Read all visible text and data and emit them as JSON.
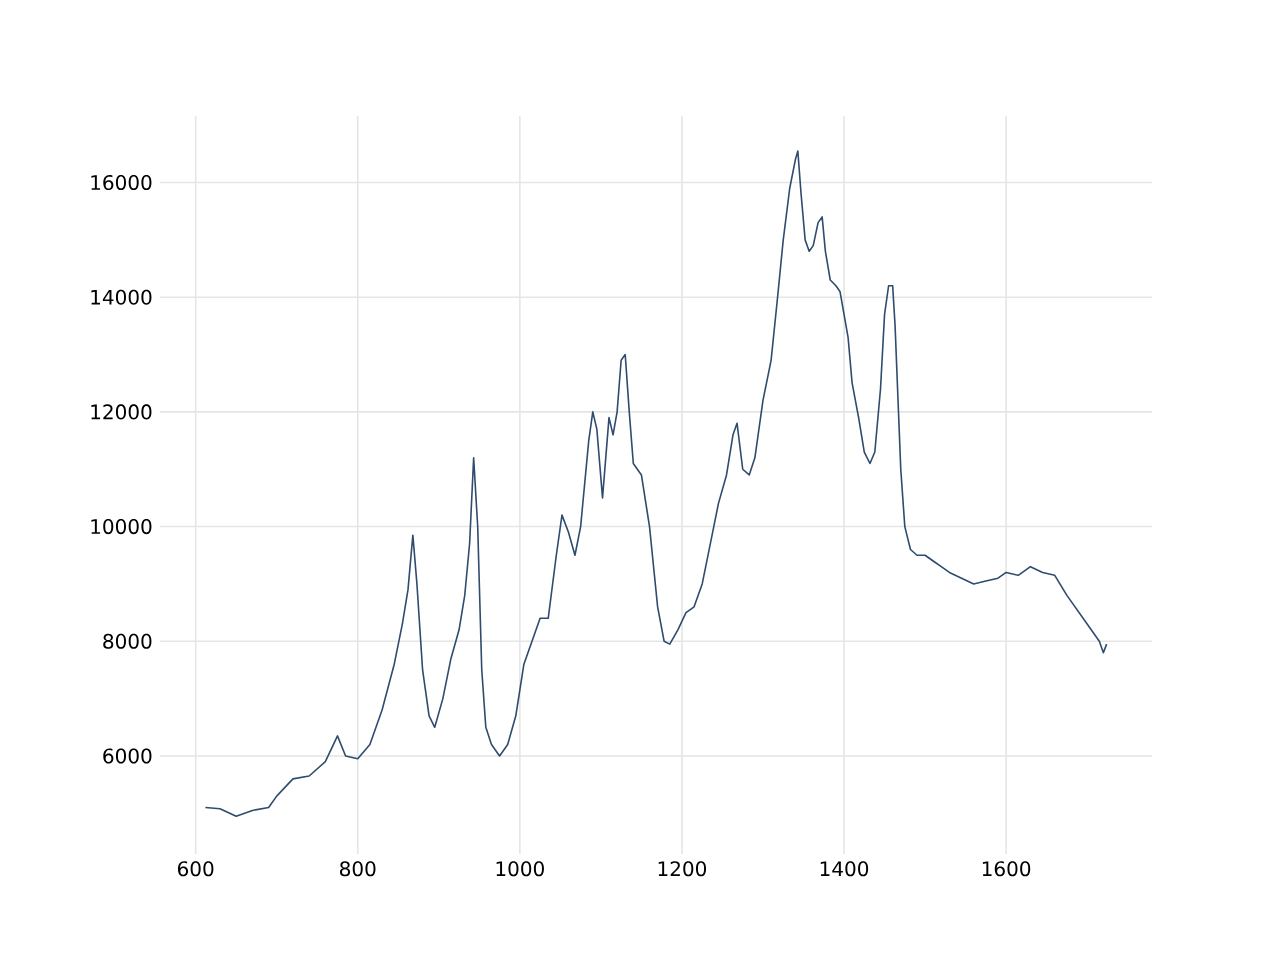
{
  "chart_data": {
    "type": "line",
    "color": "#2f4b6e",
    "grid": true,
    "xlim": [
      556,
      1780
    ],
    "ylim": [
      4290,
      17160
    ],
    "xticks": [
      600,
      800,
      1000,
      1200,
      1400,
      1600
    ],
    "yticks": [
      6000,
      8000,
      10000,
      12000,
      14000,
      16000
    ],
    "x": [
      612,
      630,
      650,
      670,
      690,
      700,
      720,
      740,
      760,
      775,
      785,
      800,
      815,
      830,
      845,
      855,
      862,
      868,
      873,
      880,
      888,
      895,
      905,
      915,
      925,
      932,
      938,
      943,
      948,
      953,
      958,
      965,
      975,
      985,
      995,
      1005,
      1015,
      1025,
      1035,
      1045,
      1052,
      1060,
      1068,
      1075,
      1085,
      1090,
      1095,
      1102,
      1110,
      1115,
      1120,
      1125,
      1130,
      1135,
      1140,
      1150,
      1160,
      1170,
      1178,
      1185,
      1195,
      1205,
      1215,
      1225,
      1235,
      1245,
      1255,
      1263,
      1268,
      1275,
      1283,
      1290,
      1300,
      1310,
      1318,
      1325,
      1333,
      1340,
      1343,
      1347,
      1352,
      1357,
      1362,
      1368,
      1373,
      1377,
      1383,
      1390,
      1395,
      1400,
      1405,
      1410,
      1418,
      1425,
      1432,
      1438,
      1445,
      1450,
      1455,
      1460,
      1463,
      1470,
      1475,
      1482,
      1490,
      1500,
      1510,
      1520,
      1530,
      1545,
      1560,
      1575,
      1590,
      1600,
      1615,
      1630,
      1645,
      1660,
      1675,
      1690,
      1705,
      1715,
      1720,
      1724
    ],
    "values": [
      5100,
      5080,
      4950,
      5050,
      5100,
      5300,
      5600,
      5650,
      5900,
      6350,
      6000,
      5950,
      6200,
      6800,
      7600,
      8300,
      8900,
      9850,
      9000,
      7500,
      6700,
      6500,
      7000,
      7700,
      8200,
      8800,
      9700,
      11200,
      10000,
      7500,
      6500,
      6200,
      6000,
      6200,
      6700,
      7600,
      8000,
      8400,
      8400,
      9500,
      10200,
      9900,
      9500,
      10000,
      11500,
      12000,
      11700,
      10500,
      11900,
      11600,
      12000,
      12900,
      13000,
      12000,
      11100,
      10900,
      10000,
      8600,
      8000,
      7950,
      8200,
      8500,
      8600,
      9000,
      9700,
      10400,
      10900,
      11600,
      11800,
      11000,
      10900,
      11200,
      12200,
      12900,
      14000,
      15000,
      15900,
      16400,
      16550,
      15800,
      15000,
      14800,
      14900,
      15300,
      15400,
      14800,
      14300,
      14200,
      14100,
      13700,
      13300,
      12500,
      11900,
      11300,
      11100,
      11300,
      12400,
      13700,
      14200,
      14200,
      13500,
      11000,
      10000,
      9600,
      9500,
      9500,
      9400,
      9300,
      9200,
      9100,
      9000,
      9050,
      9100,
      9200,
      9150,
      9300,
      9200,
      9150,
      8800,
      8500,
      8200,
      8000,
      7800,
      7950
    ]
  }
}
